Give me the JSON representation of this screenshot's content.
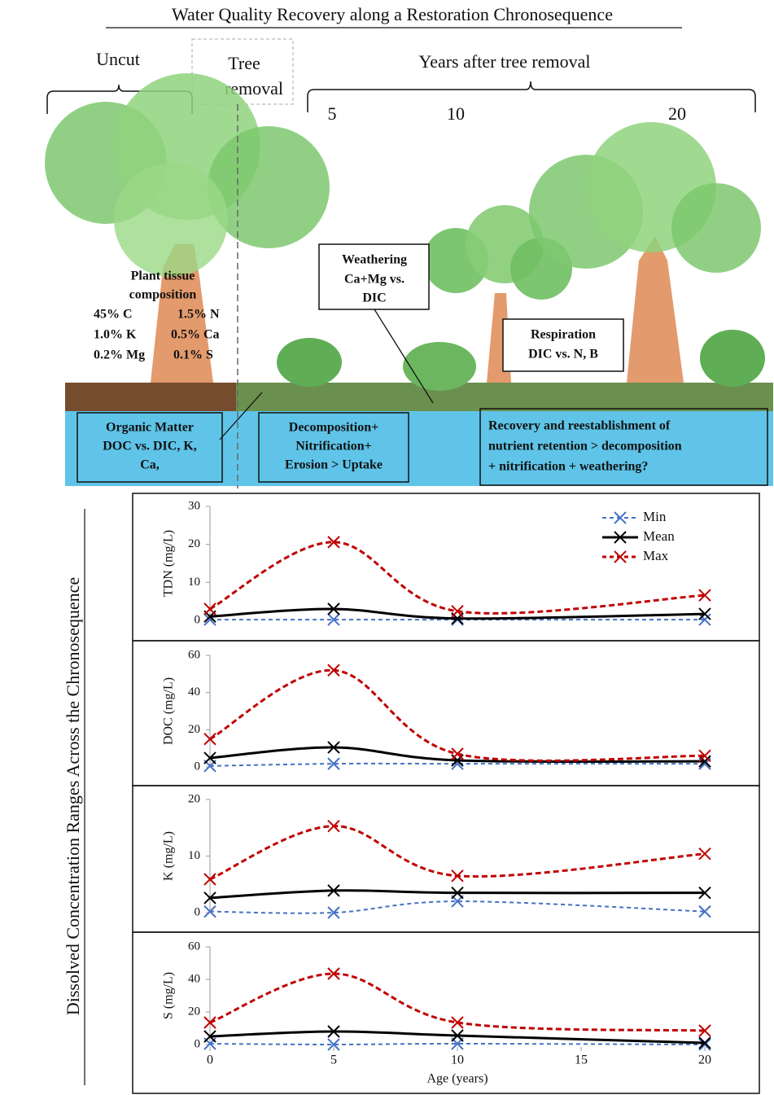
{
  "title": "Water Quality Recovery along a Restoration Chronosequence",
  "illustration": {
    "uncut": "Uncut",
    "tree_removal": [
      "Tree",
      "removal"
    ],
    "years_after": "Years after tree removal",
    "year_labels": [
      "5",
      "10",
      "20"
    ],
    "plant_tissue": {
      "heading": [
        "Plant tissue",
        "composition"
      ],
      "rows": [
        [
          "45% C",
          "1.5% N"
        ],
        [
          "1.0% K",
          "0.5% Ca"
        ],
        [
          "0.2% Mg",
          "0.1% S"
        ]
      ]
    },
    "weathering": [
      "Weathering",
      "Ca+Mg vs.",
      "DIC"
    ],
    "respiration": [
      "Respiration",
      "DIC vs. N, B"
    ],
    "organic_matter": [
      "Organic Matter",
      "DOC vs. DIC, K,",
      "Ca,"
    ],
    "decomposition": [
      "Decomposition+",
      "Nitrification+",
      "Erosion > Uptake"
    ],
    "recovery": [
      "Recovery and reestablishment of",
      "nutrient retention > decomposition",
      "+ nitrification + weathering?"
    ]
  },
  "side_label": "Dissolved Concentration Ranges Across the Chronosequence",
  "chart_data": [
    {
      "type": "line",
      "y_label": "TDN (mg/L)",
      "x": [
        0,
        5,
        10,
        20
      ],
      "xlim": [
        0,
        20
      ],
      "ylim": [
        0,
        30
      ],
      "yticks": [
        0,
        10,
        20,
        30
      ],
      "legend": "upper right",
      "series": [
        {
          "name": "Min",
          "color": "#4472c4",
          "linestyle": "dashed",
          "values": [
            0.2,
            0.2,
            0.2,
            0.2
          ]
        },
        {
          "name": "Mean",
          "color": "#000000",
          "linestyle": "solid",
          "values": [
            1,
            3,
            0.5,
            1.7
          ]
        },
        {
          "name": "Max",
          "color": "#c00000",
          "linestyle": "dashed",
          "values": [
            3,
            20.6,
            2.4,
            6.6
          ]
        }
      ]
    },
    {
      "type": "line",
      "y_label": "DOC (mg/L)",
      "x": [
        0,
        5,
        10,
        20
      ],
      "xlim": [
        0,
        20
      ],
      "ylim": [
        0,
        60
      ],
      "yticks": [
        0,
        20,
        40,
        60
      ],
      "series": [
        {
          "color": "#4472c4",
          "linestyle": "dashed",
          "values": [
            0.5,
            1.7,
            1.7,
            1.7
          ]
        },
        {
          "color": "#000000",
          "linestyle": "solid",
          "values": [
            4.8,
            10.5,
            3.5,
            3
          ]
        },
        {
          "color": "#c00000",
          "linestyle": "dashed",
          "values": [
            15,
            52,
            7,
            6
          ]
        }
      ]
    },
    {
      "type": "line",
      "y_label": "K (mg/L)",
      "x": [
        0,
        5,
        10,
        20
      ],
      "xlim": [
        0,
        20
      ],
      "ylim": [
        0,
        20
      ],
      "yticks": [
        0,
        10,
        20
      ],
      "series": [
        {
          "color": "#4472c4",
          "linestyle": "dashed",
          "values": [
            0.2,
            0,
            2,
            0.2
          ]
        },
        {
          "color": "#000000",
          "linestyle": "solid",
          "values": [
            2.6,
            3.9,
            3.5,
            3.5
          ]
        },
        {
          "color": "#c00000",
          "linestyle": "dashed",
          "values": [
            5.9,
            15.3,
            6.5,
            10.4
          ]
        }
      ]
    },
    {
      "type": "line",
      "y_label": "S (mg/L)",
      "x": [
        0,
        5,
        10,
        20
      ],
      "xlim": [
        0,
        20
      ],
      "ylim": [
        0,
        60
      ],
      "yticks": [
        0,
        20,
        40,
        60
      ],
      "xticks": [
        0,
        5,
        10,
        15,
        20
      ],
      "x_label": "Age (years)",
      "series": [
        {
          "color": "#4472c4",
          "linestyle": "dashed",
          "values": [
            0.5,
            0,
            0.5,
            0
          ]
        },
        {
          "color": "#000000",
          "linestyle": "solid",
          "values": [
            5,
            8,
            5.5,
            1
          ]
        },
        {
          "color": "#c00000",
          "linestyle": "dashed",
          "values": [
            13.5,
            43.5,
            13.5,
            8.5
          ]
        }
      ]
    }
  ]
}
